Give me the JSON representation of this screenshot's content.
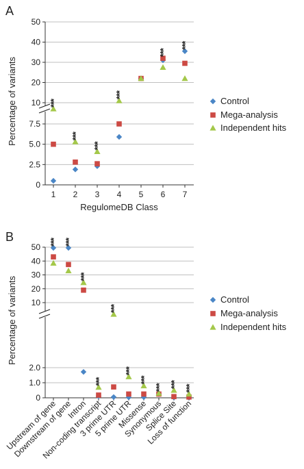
{
  "colors": {
    "control": "#4a86c6",
    "mega": "#cc4a44",
    "independent": "#a4c84a",
    "grid": "#bfbfbf"
  },
  "chart_data": [
    {
      "type": "scatter",
      "panel": "A",
      "categories": [
        "1",
        "2",
        "3",
        "4",
        "5",
        "6",
        "7"
      ],
      "xlabel": "RegulomeDB Class",
      "ylabel": "Percentage of variants",
      "axis_break": true,
      "y_upper_ticks": [
        "10",
        "20",
        "30",
        "40",
        "50"
      ],
      "y_lower_ticks": [
        "0",
        "2.5",
        "5.0",
        "7.5"
      ],
      "grid": true,
      "legend": "right",
      "series": [
        {
          "name": "Control",
          "marker": "diamond",
          "values": [
            0.5,
            1.9,
            2.3,
            5.9,
            22,
            31,
            35.5
          ]
        },
        {
          "name": "Mega-analysis",
          "marker": "square",
          "values": [
            5.0,
            2.8,
            2.6,
            7.5,
            22,
            32,
            29.5
          ]
        },
        {
          "name": "Independent hits",
          "marker": "triangle",
          "values": [
            8.5,
            5.3,
            4.1,
            11,
            22,
            27.5,
            22
          ]
        }
      ],
      "annotations": [
        {
          "category": "1",
          "text": "***"
        },
        {
          "category": "2",
          "text": "***"
        },
        {
          "category": "3",
          "text": "***"
        },
        {
          "category": "4",
          "text": "***"
        },
        {
          "category": "6",
          "text": "***"
        },
        {
          "category": "7",
          "text": "***"
        }
      ]
    },
    {
      "type": "scatter",
      "panel": "B",
      "categories": [
        "Upstream of gene",
        "Downstream of gene",
        "Intron",
        "Non-coding transcript",
        "3 prime UTR",
        "5 prime UTR",
        "Missense",
        "Synonymous",
        "Splice Site",
        "Loss of function"
      ],
      "xlabel": "",
      "ylabel": "Percentage of variants",
      "axis_break": true,
      "y_upper_ticks": [
        "10",
        "20",
        "30",
        "40",
        "50"
      ],
      "y_lower_ticks": [
        "0",
        "1.0",
        "2.0"
      ],
      "grid": true,
      "legend": "right",
      "series": [
        {
          "name": "Control",
          "marker": "diamond",
          "values": [
            49.5,
            49.5,
            1.72,
            0.1,
            0.05,
            0.03,
            0.04,
            0.25,
            0.02,
            0.02
          ]
        },
        {
          "name": "Mega-analysis",
          "marker": "square",
          "values": [
            43,
            37.5,
            19,
            0.18,
            0.72,
            0.25,
            0.25,
            0.25,
            0.08,
            0.05
          ]
        },
        {
          "name": "Independent hits",
          "marker": "triangle",
          "values": [
            38.5,
            33,
            24.5,
            0.7,
            2.2,
            1.4,
            0.8,
            0.3,
            0.5,
            0.25
          ]
        }
      ],
      "annotations": [
        {
          "category": "Upstream of gene",
          "text": "***"
        },
        {
          "category": "Downstream of gene",
          "text": "***"
        },
        {
          "category": "Intron",
          "text": "***"
        },
        {
          "category": "Non-coding transcript",
          "text": "***"
        },
        {
          "category": "3 prime UTR",
          "text": "***"
        },
        {
          "category": "5 prime UTR",
          "text": "***"
        },
        {
          "category": "Missense",
          "text": "***"
        },
        {
          "category": "Synonymous",
          "text": "***"
        },
        {
          "category": "Splice Site",
          "text": "***"
        },
        {
          "category": "Loss of function",
          "text": "***"
        }
      ]
    }
  ]
}
